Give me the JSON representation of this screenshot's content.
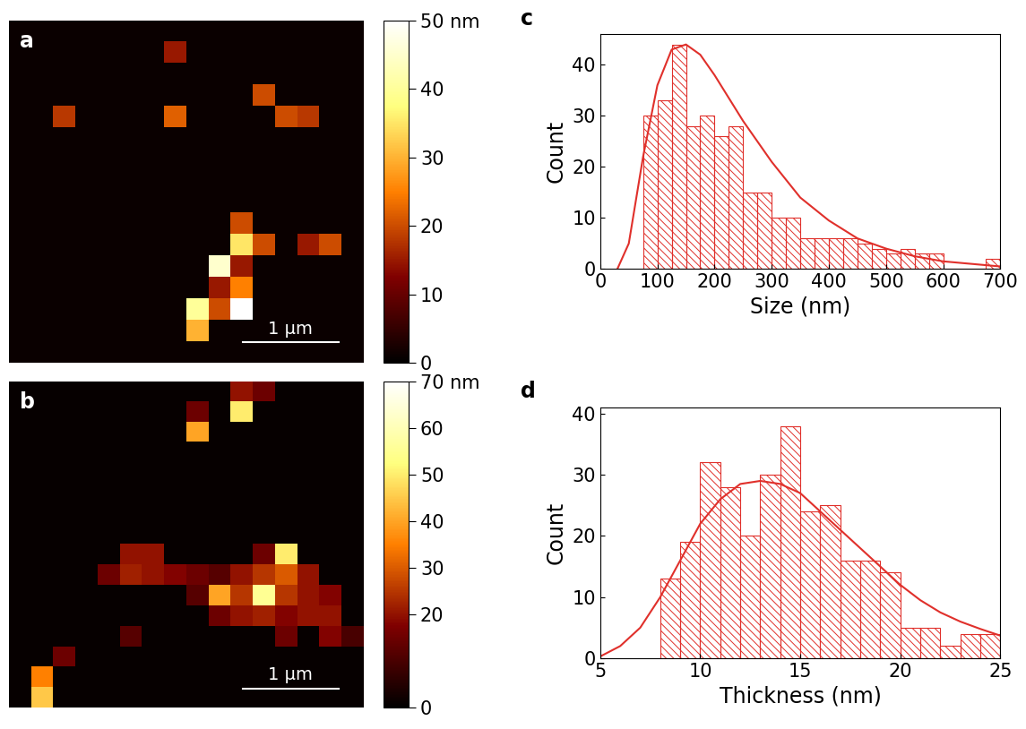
{
  "chart_data": [
    {
      "type": "heatmap",
      "label": "a",
      "size": 3.7,
      "scale_bar": {
        "length": 1,
        "label": "1 µm"
      },
      "colorbar": {
        "range": [
          0,
          50
        ],
        "ticks": [
          0,
          10,
          20,
          30,
          40,
          {
            "value": 50,
            "label": "50 nm"
          }
        ]
      },
      "cells": [
        [
          1,
          1,
          1,
          1,
          1,
          1,
          1,
          1,
          1,
          1,
          1,
          1,
          1,
          1,
          1,
          1
        ],
        [
          1,
          1,
          1,
          1,
          1,
          1,
          1,
          15,
          1,
          1,
          1,
          1,
          1,
          1,
          1,
          1
        ],
        [
          1,
          1,
          1,
          1,
          1,
          1,
          1,
          1,
          1,
          1,
          1,
          1,
          1,
          1,
          1,
          1
        ],
        [
          1,
          1,
          1,
          1,
          1,
          1,
          1,
          1,
          1,
          1,
          1,
          20,
          1,
          1,
          1,
          1
        ],
        [
          1,
          1,
          18,
          1,
          1,
          1,
          1,
          22,
          1,
          1,
          1,
          1,
          20,
          18,
          1,
          1
        ],
        [
          1,
          1,
          1,
          1,
          1,
          1,
          1,
          1,
          1,
          1,
          1,
          1,
          1,
          1,
          1,
          1
        ],
        [
          1,
          1,
          1,
          1,
          1,
          1,
          1,
          1,
          1,
          1,
          1,
          1,
          1,
          1,
          1,
          1
        ],
        [
          1,
          1,
          1,
          1,
          1,
          1,
          1,
          1,
          1,
          1,
          1,
          1,
          1,
          1,
          1,
          1
        ],
        [
          1,
          1,
          1,
          1,
          1,
          1,
          1,
          1,
          1,
          1,
          1,
          1,
          1,
          1,
          1,
          1
        ],
        [
          1,
          1,
          1,
          1,
          1,
          1,
          1,
          1,
          1,
          1,
          20,
          1,
          1,
          1,
          1,
          1
        ],
        [
          1,
          1,
          1,
          1,
          1,
          1,
          1,
          1,
          1,
          1,
          35,
          20,
          1,
          15,
          20,
          1
        ],
        [
          1,
          1,
          1,
          1,
          1,
          1,
          1,
          1,
          1,
          45,
          15,
          1,
          1,
          1,
          1,
          1
        ],
        [
          1,
          1,
          1,
          1,
          1,
          1,
          1,
          1,
          1,
          15,
          25,
          1,
          1,
          1,
          1,
          1
        ],
        [
          1,
          1,
          1,
          1,
          1,
          1,
          1,
          1,
          40,
          20,
          50,
          1,
          1,
          1,
          1,
          1
        ],
        [
          1,
          1,
          1,
          1,
          1,
          1,
          1,
          1,
          30,
          1,
          1,
          1,
          1,
          1,
          1,
          1
        ],
        [
          1,
          1,
          1,
          1,
          1,
          1,
          1,
          1,
          1,
          1,
          1,
          1,
          1,
          1,
          1,
          1
        ]
      ]
    },
    {
      "type": "histogram",
      "label": "c",
      "xlabel": "Size (nm)",
      "ylabel": "Count",
      "color": "#e0302b",
      "bins": [
        75,
        100,
        125,
        150,
        175,
        200,
        225,
        250,
        275,
        300,
        325,
        350,
        375,
        400,
        425,
        450,
        475,
        500,
        525,
        550,
        575,
        600,
        625,
        650,
        675,
        700
      ],
      "counts": [
        30,
        33,
        44,
        28,
        30,
        26,
        28,
        15,
        15,
        10,
        10,
        6,
        6,
        6,
        6,
        5,
        4,
        3,
        4,
        3,
        3,
        0,
        0,
        0,
        2
      ],
      "fit": {
        "x": [
          30,
          50,
          75,
          100,
          125,
          150,
          175,
          200,
          250,
          300,
          350,
          400,
          450,
          500,
          550,
          600,
          650,
          700
        ],
        "y": [
          0,
          5,
          22,
          36,
          43,
          44,
          42,
          38,
          29,
          21,
          14,
          9.5,
          6,
          4,
          2.5,
          1.5,
          1,
          0.5
        ]
      },
      "xlim": [
        0,
        700
      ],
      "xticks": [
        0,
        100,
        200,
        300,
        400,
        500,
        600,
        700
      ],
      "ylim": [
        0,
        46
      ],
      "yticks": [
        0,
        10,
        20,
        30,
        40
      ]
    },
    {
      "type": "heatmap",
      "label": "b",
      "size": 3.7,
      "scale_bar": {
        "length": 1,
        "label": "1 µm"
      },
      "colorbar": {
        "range": [
          0,
          70
        ],
        "ticks": [
          0,
          20,
          30,
          40,
          50,
          60,
          {
            "value": 70,
            "label": "70 nm"
          }
        ]
      },
      "cells": [
        [
          1,
          1,
          1,
          1,
          1,
          1,
          1,
          1,
          1,
          1,
          20,
          15,
          1,
          1,
          1,
          1
        ],
        [
          1,
          1,
          1,
          1,
          1,
          1,
          1,
          1,
          15,
          1,
          50,
          1,
          1,
          1,
          1,
          1
        ],
        [
          1,
          1,
          1,
          1,
          1,
          1,
          1,
          1,
          40,
          1,
          1,
          1,
          1,
          1,
          1,
          1
        ],
        [
          1,
          1,
          1,
          1,
          1,
          1,
          1,
          1,
          1,
          1,
          1,
          1,
          1,
          1,
          1,
          1
        ],
        [
          1,
          1,
          1,
          1,
          1,
          1,
          1,
          1,
          1,
          1,
          1,
          1,
          1,
          1,
          1,
          1
        ],
        [
          1,
          1,
          1,
          1,
          1,
          1,
          1,
          1,
          1,
          1,
          1,
          1,
          1,
          1,
          1,
          1
        ],
        [
          1,
          1,
          1,
          1,
          1,
          1,
          1,
          1,
          1,
          1,
          1,
          1,
          1,
          1,
          1,
          1
        ],
        [
          1,
          1,
          1,
          1,
          1,
          1,
          1,
          1,
          1,
          1,
          1,
          1,
          1,
          1,
          1,
          1
        ],
        [
          1,
          1,
          1,
          1,
          1,
          20,
          20,
          1,
          1,
          1,
          1,
          15,
          50,
          1,
          1,
          1
        ],
        [
          1,
          1,
          1,
          1,
          15,
          22,
          20,
          18,
          15,
          12,
          20,
          25,
          30,
          20,
          1,
          1
        ],
        [
          1,
          1,
          1,
          1,
          1,
          1,
          1,
          1,
          12,
          40,
          25,
          55,
          25,
          20,
          18,
          1
        ],
        [
          1,
          1,
          1,
          1,
          1,
          1,
          1,
          1,
          1,
          15,
          20,
          22,
          18,
          20,
          20,
          1
        ],
        [
          1,
          1,
          1,
          1,
          1,
          12,
          1,
          1,
          1,
          1,
          1,
          1,
          15,
          1,
          18,
          10
        ],
        [
          1,
          1,
          15,
          1,
          1,
          1,
          1,
          1,
          1,
          1,
          1,
          1,
          1,
          1,
          1,
          1
        ],
        [
          1,
          35,
          1,
          1,
          1,
          1,
          1,
          1,
          1,
          1,
          1,
          1,
          1,
          1,
          1,
          1
        ],
        [
          1,
          45,
          1,
          1,
          1,
          1,
          1,
          1,
          1,
          1,
          1,
          1,
          1,
          1,
          1,
          1
        ]
      ]
    },
    {
      "type": "histogram",
      "label": "d",
      "xlabel": "Thickness (nm)",
      "ylabel": "Count",
      "color": "#e0302b",
      "bins": [
        8,
        9,
        10,
        11,
        12,
        13,
        14,
        15,
        16,
        17,
        18,
        19,
        20,
        21,
        22,
        23,
        24,
        25
      ],
      "counts": [
        13,
        19,
        32,
        28,
        20,
        30,
        38,
        24,
        25,
        16,
        16,
        14,
        5,
        5,
        2,
        4,
        4
      ],
      "fit": {
        "x": [
          5,
          6,
          7,
          8,
          9,
          10,
          11,
          12,
          13,
          14,
          15,
          16,
          17,
          18,
          19,
          20,
          21,
          22,
          23,
          24,
          25
        ],
        "y": [
          0.3,
          2,
          5,
          10,
          16,
          22,
          26,
          28.5,
          29,
          28.5,
          27,
          24,
          21,
          18,
          15,
          12,
          9.5,
          7.5,
          6,
          4.8,
          3.7
        ]
      },
      "xlim": [
        5,
        25
      ],
      "xticks": [
        5,
        10,
        15,
        20,
        25
      ],
      "ylim": [
        0,
        41
      ],
      "yticks": [
        0,
        10,
        20,
        30,
        40
      ]
    }
  ]
}
